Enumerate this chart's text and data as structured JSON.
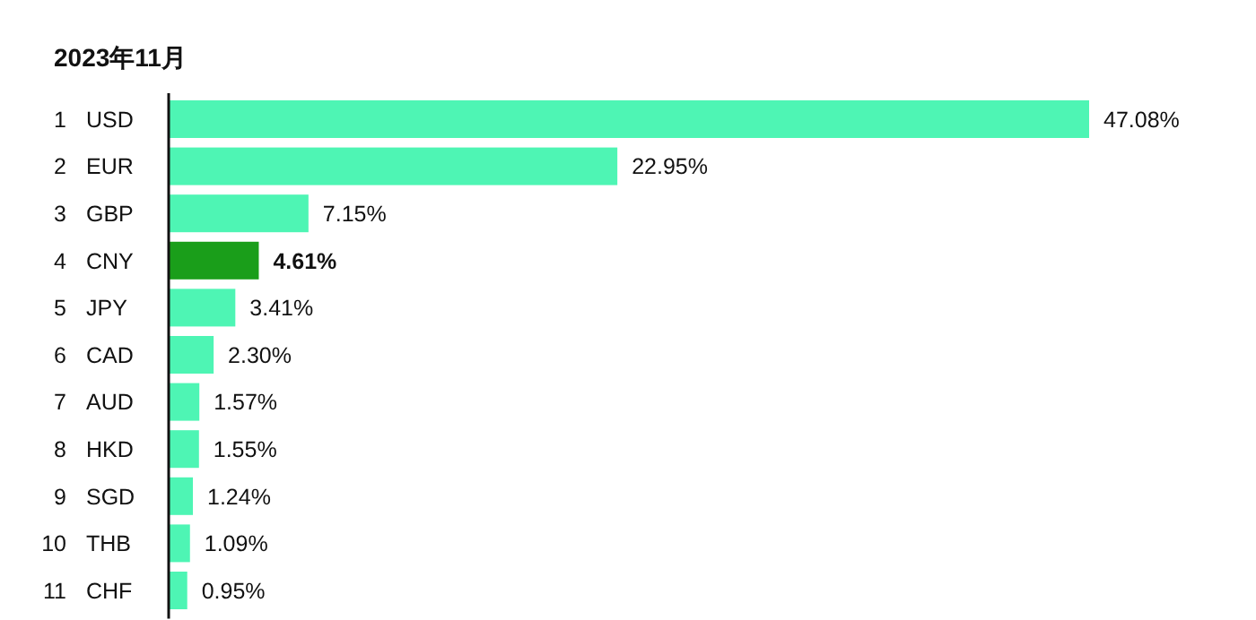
{
  "chart_data": {
    "type": "bar",
    "orientation": "horizontal",
    "title": "2023年11月",
    "categories": [
      "1 USD",
      "2 EUR",
      "3 GBP",
      "4 CNY",
      "5 JPY",
      "6 CAD",
      "7 AUD",
      "8 HKD",
      "9 SGD",
      "10 THB",
      "11 CHF"
    ],
    "values": [
      47.08,
      22.95,
      7.15,
      4.61,
      3.41,
      2.3,
      1.57,
      1.55,
      1.24,
      1.09,
      0.95
    ],
    "value_labels": [
      "47.08%",
      "22.95%",
      "7.15%",
      "4.61%",
      "3.41%",
      "2.30%",
      "1.57%",
      "1.55%",
      "1.24%",
      "1.09%",
      "0.95%"
    ],
    "colors": [
      "#4ef5b4",
      "#4ef5b4",
      "#4ef5b4",
      "#1a9e1a",
      "#4ef5b4",
      "#4ef5b4",
      "#4ef5b4",
      "#4ef5b4",
      "#4ef5b4",
      "#4ef5b4",
      "#4ef5b4"
    ]
  }
}
